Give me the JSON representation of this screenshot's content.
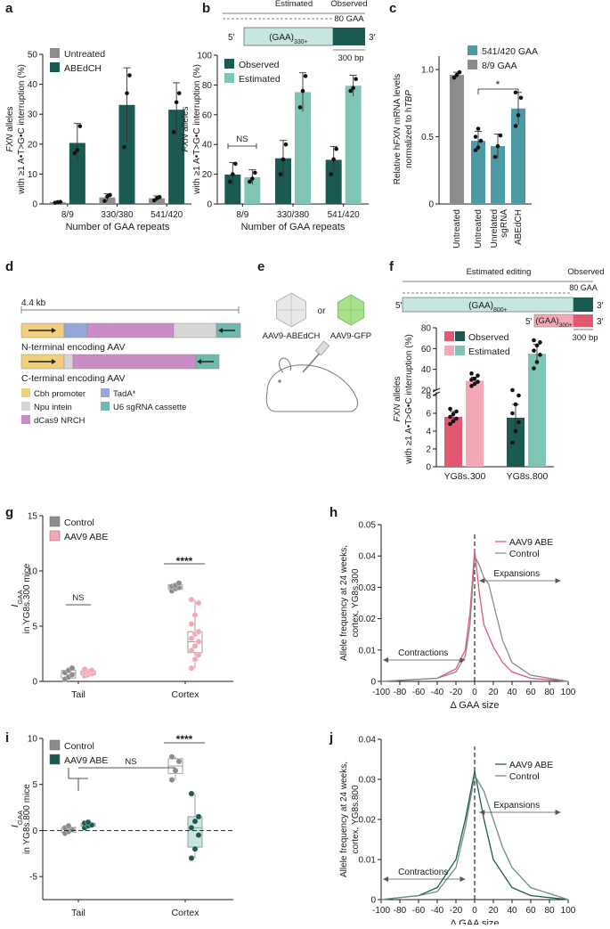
{
  "colors": {
    "gray_dark": "#8c8c8c",
    "gray_light": "#c8c8c8",
    "green_dark": "#1b5a53",
    "green_light": "#7fc4b4",
    "teal_mid": "#4b9aa5",
    "teal_box": "#c6e6df",
    "pink_dark": "#e25870",
    "pink_light": "#f3a8b5",
    "yellow": "#f2cf7c",
    "blue": "#97a8d8",
    "lightgray": "#d6d6d6",
    "purple": "#c98cc6",
    "sgteal": "#6fb9ae"
  },
  "panels": {
    "a": {
      "label": "a",
      "chart_data": {
        "type": "bar",
        "categories": [
          "8/9",
          "330/380",
          "541/420"
        ],
        "series": [
          {
            "name": "Untreated",
            "values": [
              0.6,
              2.2,
              1.9
            ],
            "errors": [
              0.3,
              1.2,
              0.8
            ],
            "points": [
              [
                0.4,
                0.6,
                0.7
              ],
              [
                1.0,
                2.5,
                3.0
              ],
              [
                1.2,
                1.9,
                2.3
              ]
            ]
          },
          {
            "name": "ABEdCH",
            "values": [
              20.4,
              33.1,
              31.5
            ],
            "errors": [
              6.5,
              12.4,
              9.0
            ],
            "points": [
              [
                17.0,
                18.0,
                26.0
              ],
              [
                19.0,
                37.0,
                43.0
              ],
              [
                24.0,
                34.0,
                37.0
              ]
            ]
          }
        ],
        "ylabel_italic": "FXN",
        "ylabel_rest": " alleles",
        "ylabel_line2": "with ≥1 A•T>G•C interruption (%)",
        "xlabel": "Number of GAA repeats",
        "ylim": [
          0,
          50
        ],
        "yticks": [
          0,
          10,
          20,
          30,
          40,
          50
        ]
      }
    },
    "b": {
      "label": "b",
      "chart_data": {
        "type": "bar",
        "categories": [
          "8/9",
          "330/380",
          "541/420"
        ],
        "series": [
          {
            "name": "Observed",
            "values": [
              19.8,
              30.7,
              29.7
            ],
            "errors": [
              8.0,
              12.0,
              9.0
            ],
            "points": [
              [
                15.0,
                20.0,
                27.0
              ],
              [
                20.0,
                30.0,
                40.0
              ],
              [
                20.0,
                30.0,
                37.0
              ]
            ]
          },
          {
            "name": "Estimated",
            "values": [
              18.0,
              75.2,
              79.5
            ],
            "errors": [
              5.0,
              13.0,
              7.0
            ],
            "points": [
              [
                15.0,
                17.0,
                21.0
              ],
              [
                65.0,
                76.0,
                86.0
              ],
              [
                76.0,
                78.0,
                84.0
              ]
            ]
          }
        ],
        "ylabel_italic": "FXN",
        "ylabel_rest": " alleles",
        "ylabel_line2": "with ≥1 A•T>G•C interruption (%)",
        "xlabel": "Number of GAA repeats",
        "ylim": [
          0,
          100
        ],
        "yticks": [
          0,
          20,
          40,
          60,
          80,
          100
        ],
        "sig": "NS"
      },
      "schematic": {
        "estimated": "Estimated",
        "observed": "Observed",
        "gaa80": "80 GAA",
        "repeat": "(GAA)",
        "sub": "330+",
        "prime5": "5′",
        "prime3": "3′",
        "bp": "300 bp"
      }
    },
    "c": {
      "label": "c",
      "chart_data": {
        "type": "bar",
        "categories": [
          "Untreated",
          "Untreated",
          "Unrelated sgRNA",
          "ABEdCH"
        ],
        "series": [
          {
            "name": "541/420 GAA",
            "values": [
              null,
              0.47,
              0.43,
              0.71
            ],
            "errors": [
              null,
              0.07,
              0.09,
              0.12
            ],
            "points": [
              [],
              [
                0.4,
                0.42,
                0.47,
                0.5,
                0.56
              ],
              [
                0.35,
                0.43,
                0.51
              ],
              [
                0.58,
                0.66,
                0.79,
                0.83
              ]
            ]
          },
          {
            "name": "8/9 GAA",
            "values": [
              0.96,
              null,
              null,
              null
            ],
            "errors": [
              0.02,
              null,
              null,
              null
            ],
            "points": [
              [
                0.94,
                0.96,
                0.98
              ],
              [],
              [],
              []
            ]
          }
        ],
        "ylabel_line1": "Relative h",
        "ylabel_italic": "FXN",
        "ylabel_rest": " mRNA levels",
        "ylabel_line2": "normalized to h",
        "ylabel_italic2": "TBP",
        "ylim": [
          0,
          1.1
        ],
        "yticks": [
          0,
          0.5,
          1.0
        ],
        "ytick_labels": [
          "0",
          "0.5",
          "1.0"
        ],
        "x_labels": [
          "Untreated",
          "Untreated",
          "Unrelated",
          "sgRNA",
          "ABEdCH"
        ],
        "sig": "*"
      }
    },
    "d": {
      "label": "d",
      "size": "4.4 kb",
      "n_title": "N-terminal encoding AAV",
      "c_title": "C-terminal encoding AAV",
      "legend": [
        "Cbh promoter",
        "TadA*",
        "Npu intein",
        "U6 sgRNA cassette",
        "dCas9 NRCH"
      ]
    },
    "e": {
      "label": "e",
      "aav1": "AAV9-ABEdCH",
      "or": "or",
      "aav2": "AAV9-GFP"
    },
    "f": {
      "label": "f",
      "schematic": {
        "estimated": "Estimated editing",
        "observed": "Observed",
        "gaa80": "80 GAA",
        "repeat800": "(GAA)",
        "sub800": "800+",
        "repeat300": "(GAA)",
        "sub300": "300+",
        "prime5": "5′",
        "prime3": "3′",
        "bp": "300 bp"
      },
      "chart_data": {
        "type": "bar",
        "categories": [
          "YG8s.300",
          "YG8s.800"
        ],
        "series": [
          {
            "name": "Observed",
            "values": [
              5.6,
              5.5
            ],
            "errors": [
              0.6,
              1.5
            ],
            "points": [
              [
                4.8,
                5.1,
                5.4,
                5.6,
                5.9,
                6.2,
                6.5
              ],
              [
                2.7,
                4.0,
                5.0,
                6.0,
                7.0,
                8.0,
                9.4
              ]
            ]
          },
          {
            "name": "Estimated",
            "values": [
              29.0,
              55.0
            ],
            "errors": [
              3.5,
              9.0
            ],
            "points": [
              [
                24.0,
                26.0,
                28.0,
                30.0,
                31.0,
                34.0,
                36.0
              ],
              [
                41.0,
                47.0,
                54.0,
                58.0,
                63.0,
                66.0,
                68.0
              ]
            ]
          }
        ],
        "ylabel_italic": "FXN",
        "ylabel_rest": " alleles",
        "ylabel_line2": "with ≥1 A•T>G•C interruption (%)",
        "yticks_lower": [
          0,
          2,
          4,
          6,
          8
        ],
        "yticks_upper": [
          20,
          40,
          60,
          80
        ]
      }
    },
    "g": {
      "label": "g",
      "chart_data": {
        "type": "scatter",
        "categories": [
          "Tail",
          "Cortex"
        ],
        "series": [
          {
            "name": "Control",
            "points": [
              [
                0.2,
                0.4,
                0.6,
                0.8,
                1.0,
                1.2
              ],
              [
                8.2,
                8.4,
                8.5,
                8.6,
                8.7,
                8.9
              ]
            ]
          },
          {
            "name": "AAV9 ABE",
            "points": [
              [
                0.5,
                0.6,
                0.7,
                0.8,
                0.9,
                1.0,
                1.1
              ],
              [
                1.2,
                2.0,
                2.4,
                2.8,
                3.2,
                3.6,
                3.9,
                4.3,
                4.5,
                5.2,
                6.0,
                7.1,
                7.4
              ]
            ]
          }
        ],
        "boxes": [
          {
            "g": 0,
            "s": 0,
            "q": [
              0.2,
              0.3,
              0.8,
              1.0,
              1.2
            ]
          },
          {
            "g": 0,
            "s": 1,
            "q": [
              0.5,
              0.6,
              0.8,
              0.95,
              1.1
            ]
          },
          {
            "g": 1,
            "s": 0,
            "q": [
              8.2,
              8.35,
              8.55,
              8.75,
              8.9
            ]
          },
          {
            "g": 1,
            "s": 1,
            "q": [
              1.2,
              2.6,
              3.6,
              4.5,
              7.4
            ]
          }
        ],
        "ylabel_main": "I",
        "ylabel_sub": "GAA",
        "ylabel_line2": "in YG8s.300 mice",
        "ylim": [
          0,
          15
        ],
        "yticks": [
          0,
          5,
          10,
          15
        ],
        "sig_tail": "NS",
        "sig_cortex": "****"
      }
    },
    "h": {
      "label": "h",
      "chart_data": {
        "type": "line",
        "series": [
          {
            "name": "AAV9 ABE",
            "x": [
              -100,
              -40,
              -20,
              -10,
              -5,
              0,
              5,
              10,
              20,
              30,
              40,
              60,
              100
            ],
            "y": [
              0.0,
              0.001,
              0.004,
              0.01,
              0.022,
              0.042,
              0.028,
              0.018,
              0.011,
              0.006,
              0.003,
              0.001,
              0.0
            ]
          },
          {
            "name": "Control",
            "x": [
              -100,
              -40,
              -20,
              -10,
              -5,
              0,
              5,
              10,
              15,
              20,
              30,
              40,
              60,
              100
            ],
            "y": [
              0.0,
              0.001,
              0.003,
              0.008,
              0.018,
              0.04,
              0.037,
              0.033,
              0.031,
              0.025,
              0.013,
              0.006,
              0.002,
              0.0
            ]
          }
        ],
        "xlabel": "Δ GAA size",
        "ylabel_line1": "Allele frequency at 24 weeks,",
        "ylabel_line2": "cortex, YG8s.300",
        "xlim": [
          -100,
          100
        ],
        "xticks": [
          -100,
          -80,
          -60,
          -40,
          -20,
          0,
          20,
          40,
          60,
          80,
          100
        ],
        "ylim": [
          0,
          0.05
        ],
        "yticks": [
          0,
          0.01,
          0.02,
          0.03,
          0.04,
          0.05
        ],
        "ytick_labels": [
          "0",
          "0.01",
          "0.02",
          "0.03",
          "0.04",
          "0.05"
        ],
        "contractions": "Contractions",
        "expansions": "Expansions"
      }
    },
    "i": {
      "label": "i",
      "chart_data": {
        "type": "scatter",
        "categories": [
          "Tail",
          "Cortex"
        ],
        "series": [
          {
            "name": "Control",
            "points": [
              [
                -0.3,
                -0.1,
                0.1,
                0.3,
                0.5
              ],
              [
                5.5,
                6.5,
                7.5,
                8.0
              ]
            ]
          },
          {
            "name": "AAV9 ABE",
            "points": [
              [
                0.3,
                0.5,
                0.6,
                0.8,
                0.9
              ],
              [
                -3.0,
                -2.0,
                -0.5,
                0.3,
                1.0,
                1.5,
                4.0
              ]
            ]
          }
        ],
        "boxes": [
          {
            "g": 0,
            "s": 0,
            "q": [
              -0.4,
              -0.2,
              0.1,
              0.35,
              0.6
            ]
          },
          {
            "g": 0,
            "s": 1,
            "q": [
              0.2,
              0.45,
              0.6,
              0.8,
              0.9
            ]
          },
          {
            "g": 1,
            "s": 0,
            "q": [
              5.5,
              6.2,
              7.0,
              7.8,
              8.0
            ]
          },
          {
            "g": 1,
            "s": 1,
            "q": [
              -3.0,
              -1.8,
              0.3,
              1.5,
              4.0
            ]
          }
        ],
        "ylabel_main": "I",
        "ylabel_sub": "GAA",
        "ylabel_line2": "in YG8s.800 mice",
        "ylim": [
          -7.5,
          10
        ],
        "yticks": [
          -5,
          0,
          5,
          10
        ],
        "sig_ns": "NS",
        "sig_cortex": "****"
      }
    },
    "j": {
      "label": "j",
      "chart_data": {
        "type": "line",
        "series": [
          {
            "name": "AAV9 ABE",
            "x": [
              -100,
              -60,
              -40,
              -20,
              -10,
              0,
              10,
              20,
              40,
              60,
              100
            ],
            "y": [
              0.0,
              0.001,
              0.003,
              0.01,
              0.02,
              0.032,
              0.02,
              0.01,
              0.003,
              0.001,
              0.0
            ]
          },
          {
            "name": "Control",
            "x": [
              -100,
              -60,
              -40,
              -20,
              -10,
              0,
              10,
              20,
              30,
              40,
              60,
              100
            ],
            "y": [
              0.0,
              0.001,
              0.002,
              0.008,
              0.018,
              0.031,
              0.027,
              0.02,
              0.013,
              0.008,
              0.003,
              0.0
            ]
          }
        ],
        "xlabel": "Δ GAA size",
        "ylabel_line1": "Allele frequency at 24 weeks,",
        "ylabel_line2": "cortex, YG8s.800",
        "xlim": [
          -100,
          100
        ],
        "xticks": [
          -100,
          -80,
          -60,
          -40,
          -20,
          0,
          20,
          40,
          60,
          80,
          100
        ],
        "ylim": [
          0,
          0.04
        ],
        "yticks": [
          0,
          0.01,
          0.02,
          0.03,
          0.04
        ],
        "ytick_labels": [
          "0",
          "0.01",
          "0.02",
          "0.03",
          "0.04"
        ],
        "contractions": "Contractions",
        "expansions": "Expansions"
      }
    }
  }
}
